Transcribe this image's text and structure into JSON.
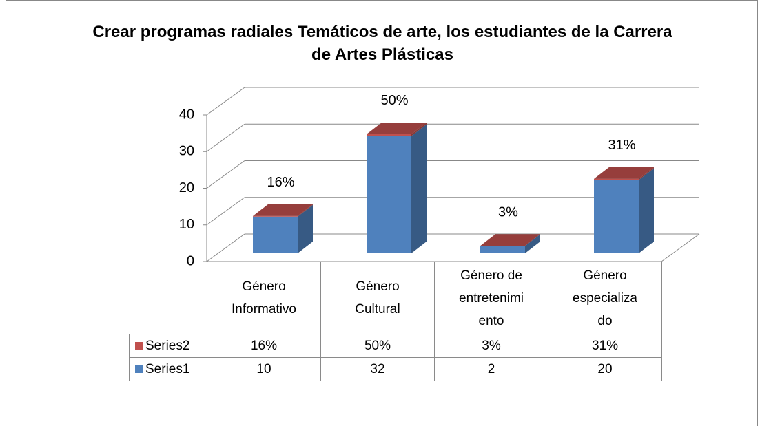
{
  "chart_data": {
    "type": "bar3d",
    "title": "Crear programas radiales Temáticos de arte, los estudiantes de la Carrera de Artes Plásticas",
    "categories": [
      "Género Informativo",
      "Género Cultural",
      "Género de entretenimiento",
      "Género especializado"
    ],
    "series": [
      {
        "name": "Series1",
        "color": "#4f81bd",
        "values": [
          10,
          32,
          2,
          20
        ]
      },
      {
        "name": "Series2",
        "color": "#c0504d",
        "values": [
          0.16,
          0.5,
          0.03,
          0.31
        ],
        "value_labels": [
          "16%",
          "50%",
          "3%",
          "31%"
        ]
      }
    ],
    "stacked": true,
    "ylim": [
      0,
      40
    ],
    "yticks": [
      0,
      10,
      20,
      30,
      40
    ],
    "grid": true
  }
}
